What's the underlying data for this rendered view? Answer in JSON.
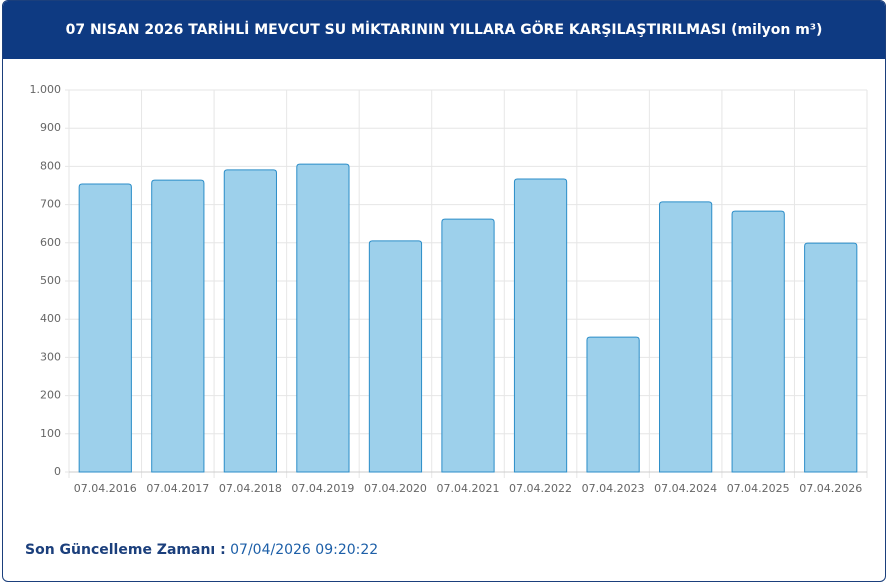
{
  "chart_data": {
    "type": "bar",
    "title": "07 NISAN 2026 TARİHLİ MEVCUT SU MİKTARININ YILLARA GÖRE KARŞILAŞTIRILMASI (milyon m³)",
    "categories": [
      "07.04.2016",
      "07.04.2017",
      "07.04.2018",
      "07.04.2019",
      "07.04.2020",
      "07.04.2021",
      "07.04.2022",
      "07.04.2023",
      "07.04.2024",
      "07.04.2025",
      "07.04.2026"
    ],
    "values": [
      754,
      764,
      791,
      806,
      605,
      662,
      767,
      353,
      707,
      683,
      599
    ],
    "color": "#9dd0eb",
    "edge_color": "#2b8dc8",
    "ylim": [
      0,
      1000
    ],
    "yticks": [
      0,
      100,
      200,
      300,
      400,
      500,
      600,
      700,
      800,
      900,
      {
        "value": 1000,
        "label": "1.000"
      }
    ],
    "grid": true
  },
  "footer": {
    "label": "Son Güncelleme Zamanı :",
    "value": "07/04/2026 09:20:22"
  }
}
